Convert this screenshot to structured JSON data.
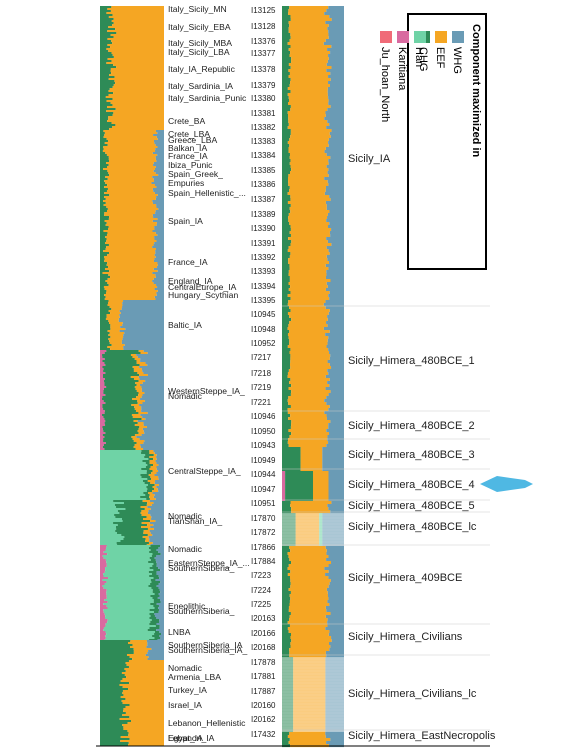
{
  "figure": {
    "left_populations": [
      "Italy_Sicily_MN",
      "Italy_Sicily_EBA",
      "Italy_Sicily_MBA",
      "Italy_Sicily_LBA",
      "Italy_IA_Republic",
      "Italy_Sardinia_IA",
      "Italy_Sardinia_Punic",
      "Crete_BA",
      "Crete_LBA",
      "Greece_LBA",
      "Balkan_IA",
      "France_IA",
      "Ibiza_Punic",
      "Spain_Greek_\nEmpuries",
      "Spain_Hellenistic_...",
      "Spain_IA",
      "France_IA",
      "England_IA",
      "CentralEurope_IA",
      "Hungary_Scythian",
      "Baltic_IA",
      "WesternSteppe_IA_\nNomadic",
      "CentralSteppe_IA_\nNomadic",
      "TianShan_IA_\nNomadic",
      "EasternSteppe_IA_...",
      "SouthernSiberia_\nEneolithic",
      "SouthernSiberia_\nLNBA",
      "SouthernSiberia_IA",
      "SouthernSiberia_IA_\nNomadic",
      "Armenia_LBA",
      "Turkey_IA",
      "Israel_IA",
      "Lebanon_Hellenistic",
      "Lebanon_IA",
      "Egypt_IA"
    ],
    "sample_ids": [
      "I13125",
      "I13128",
      "I13376",
      "I13377",
      "I13378",
      "I13379",
      "I13380",
      "I13381",
      "I13382",
      "I13383",
      "I13384",
      "I13385",
      "I13386",
      "I13387",
      "I13389",
      "I13390",
      "I13391",
      "I13392",
      "I13393",
      "I13394",
      "I13395",
      "I10945",
      "I10948",
      "I10952",
      "I7217",
      "I7218",
      "I7219",
      "I7221",
      "I10946",
      "I10950",
      "I10943",
      "I10949",
      "I10944",
      "I10947",
      "I10951",
      "I17870",
      "I17872",
      "I17866",
      "I17884",
      "I7223",
      "I7224",
      "I7225",
      "I20163",
      "I20166",
      "I20168",
      "I17878",
      "I17881",
      "I17887",
      "I20160",
      "I20162",
      "I17432"
    ],
    "groups": [
      "Sicily_IA",
      "Sicily_Himera_480BCE_1",
      "Sicily_Himera_480BCE_2",
      "Sicily_Himera_480BCE_3",
      "Sicily_Himera_480BCE_4",
      "Sicily_Himera_480BCE_5",
      "Sicily_Himera_480BCE_lc",
      "Sicily_Himera_409BCE",
      "Sicily_Himera_Civilians",
      "Sicily_Himera_Civilians_lc",
      "Sicily_Himera_EastNecropolis"
    ],
    "legend": {
      "title": "Component maximized in",
      "items": [
        {
          "label": "CHG",
          "color": "#2e8b57"
        },
        {
          "label": "EEF",
          "color": "#f5a623"
        },
        {
          "label": "WHG",
          "color": "#6a9bb5"
        },
        {
          "label": "Ju_hoan_North",
          "color": "#f06b78"
        },
        {
          "label": "Karitiana",
          "color": "#d96aa0"
        },
        {
          "label": "Han",
          "color": "#6fd3a6"
        }
      ]
    },
    "highlight_arrow_color": "#4fb8e3"
  }
}
